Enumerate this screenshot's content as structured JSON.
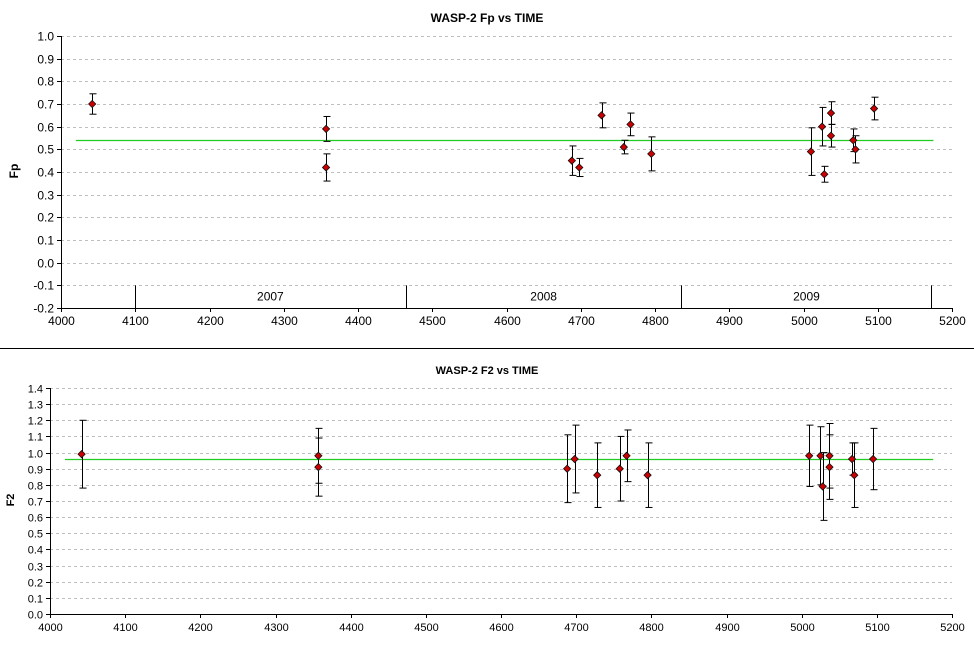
{
  "chart_data": [
    {
      "type": "scatter",
      "title": "WASP-2 Fp vs TIME",
      "xlabel": "",
      "ylabel": "Fp",
      "xlim": [
        4000,
        5200
      ],
      "ylim": [
        -0.2,
        1.0
      ],
      "x_ticks": [
        4000,
        4100,
        4200,
        4300,
        4400,
        4500,
        4600,
        4700,
        4800,
        4900,
        5000,
        5100,
        5200
      ],
      "y_ticks": [
        -0.2,
        -0.1,
        0.0,
        0.1,
        0.2,
        0.3,
        0.4,
        0.5,
        0.6,
        0.7,
        0.8,
        0.9,
        1.0
      ],
      "grid": "horizontal dashed",
      "colors": {
        "marker": "#cc0000",
        "marker_edge": "#111111",
        "fit_line": "#22cc22",
        "error_bar": "#000000",
        "grid": "#bfbfbf"
      },
      "reference_line": {
        "y": 0.54,
        "x_range": [
          4020,
          5175
        ]
      },
      "year_markers": {
        "dividers": [
          4100,
          4465,
          4835,
          5172
        ],
        "labels": [
          {
            "text": "2007",
            "x": 4282
          },
          {
            "text": "2008",
            "x": 4650
          },
          {
            "text": "2009",
            "x": 5004
          }
        ]
      },
      "points": [
        {
          "x": 4042,
          "y": 0.7,
          "err": 0.045
        },
        {
          "x": 4357,
          "y": 0.59,
          "err": 0.055
        },
        {
          "x": 4357,
          "y": 0.42,
          "err": 0.06
        },
        {
          "x": 4688,
          "y": 0.45,
          "err": 0.065
        },
        {
          "x": 4698,
          "y": 0.42,
          "err": 0.04
        },
        {
          "x": 4728,
          "y": 0.65,
          "err": 0.055
        },
        {
          "x": 4758,
          "y": 0.51,
          "err": 0.03
        },
        {
          "x": 4767,
          "y": 0.61,
          "err": 0.05
        },
        {
          "x": 4795,
          "y": 0.48,
          "err": 0.075
        },
        {
          "x": 5010,
          "y": 0.49,
          "err": 0.105
        },
        {
          "x": 5025,
          "y": 0.6,
          "err": 0.085
        },
        {
          "x": 5028,
          "y": 0.39,
          "err": 0.035
        },
        {
          "x": 5037,
          "y": 0.66,
          "err": 0.05
        },
        {
          "x": 5037,
          "y": 0.56,
          "err": 0.05
        },
        {
          "x": 5067,
          "y": 0.54,
          "err": 0.05
        },
        {
          "x": 5070,
          "y": 0.5,
          "err": 0.06
        },
        {
          "x": 5095,
          "y": 0.68,
          "err": 0.05
        }
      ]
    },
    {
      "type": "scatter",
      "title": "WASP-2 F2 vs TIME",
      "xlabel": "",
      "ylabel": "F2",
      "xlim": [
        4000,
        5200
      ],
      "ylim": [
        0.0,
        1.4
      ],
      "x_ticks": [
        4000,
        4100,
        4200,
        4300,
        4400,
        4500,
        4600,
        4700,
        4800,
        4900,
        5000,
        5100,
        5200
      ],
      "y_ticks": [
        0.0,
        0.1,
        0.2,
        0.3,
        0.4,
        0.5,
        0.6,
        0.7,
        0.8,
        0.9,
        1.0,
        1.1,
        1.2,
        1.3,
        1.4
      ],
      "grid": "horizontal dashed",
      "colors": {
        "marker": "#cc0000",
        "marker_edge": "#111111",
        "fit_line": "#22cc22",
        "error_bar": "#000000",
        "grid": "#bfbfbf"
      },
      "reference_line": {
        "y": 0.96,
        "x_range": [
          4020,
          5175
        ]
      },
      "points": [
        {
          "x": 4042,
          "y": 0.99,
          "err": 0.21
        },
        {
          "x": 4357,
          "y": 0.98,
          "err": 0.17
        },
        {
          "x": 4357,
          "y": 0.91,
          "err": 0.18
        },
        {
          "x": 4688,
          "y": 0.9,
          "err": 0.21
        },
        {
          "x": 4698,
          "y": 0.96,
          "err": 0.21
        },
        {
          "x": 4728,
          "y": 0.86,
          "err": 0.2
        },
        {
          "x": 4758,
          "y": 0.9,
          "err": 0.2
        },
        {
          "x": 4767,
          "y": 0.98,
          "err": 0.16
        },
        {
          "x": 4795,
          "y": 0.86,
          "err": 0.2
        },
        {
          "x": 5010,
          "y": 0.98,
          "err": 0.19
        },
        {
          "x": 5025,
          "y": 0.98,
          "err": 0.18
        },
        {
          "x": 5028,
          "y": 0.79,
          "err": 0.21
        },
        {
          "x": 5037,
          "y": 0.98,
          "err": 0.2
        },
        {
          "x": 5037,
          "y": 0.91,
          "err": 0.2
        },
        {
          "x": 5067,
          "y": 0.96,
          "err": 0.1
        },
        {
          "x": 5070,
          "y": 0.86,
          "err": 0.2
        },
        {
          "x": 5095,
          "y": 0.96,
          "err": 0.19
        }
      ]
    }
  ]
}
